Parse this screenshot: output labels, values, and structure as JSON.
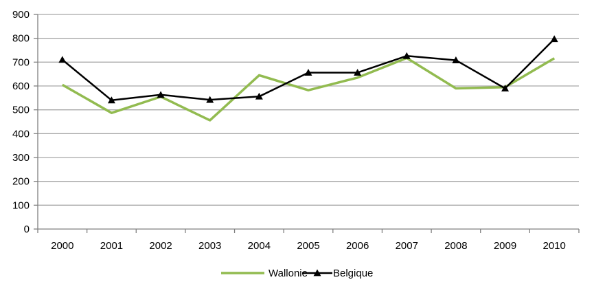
{
  "chart_data": {
    "type": "line",
    "title": "",
    "xlabel": "",
    "ylabel": "",
    "x": [
      "2000",
      "2001",
      "2002",
      "2003",
      "2004",
      "2005",
      "2006",
      "2007",
      "2008",
      "2009",
      "2010"
    ],
    "ylim": [
      0,
      900
    ],
    "yticks": [
      "0",
      "100",
      "200",
      "300",
      "400",
      "500",
      "600",
      "700",
      "800",
      "900"
    ],
    "grid": true,
    "legend_position": "bottom",
    "series": [
      {
        "name": "Wallonie",
        "color": "#92bb50",
        "marker": "none",
        "values": [
          605,
          487,
          555,
          456,
          645,
          582,
          635,
          717,
          590,
          595,
          716
        ]
      },
      {
        "name": "Belgique",
        "color": "#000000",
        "marker": "triangle",
        "values": [
          710,
          540,
          563,
          542,
          556,
          656,
          656,
          726,
          708,
          590,
          797
        ]
      }
    ]
  }
}
